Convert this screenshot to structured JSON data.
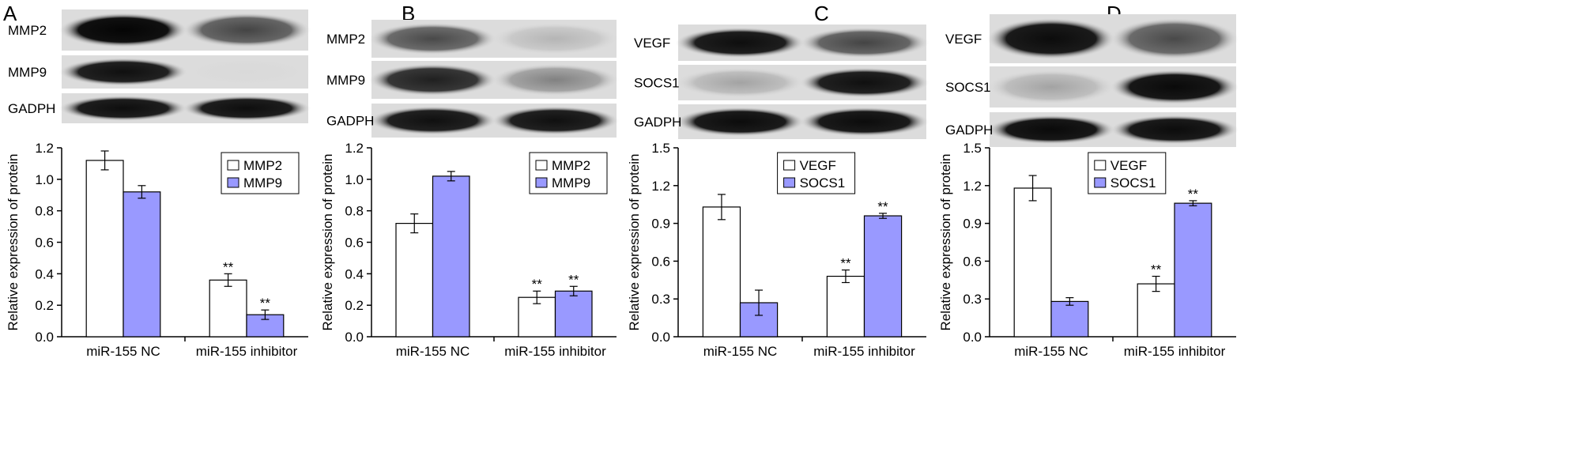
{
  "colors": {
    "series1": "#ffffff",
    "series2": "#9999ff",
    "axis": "#000000"
  },
  "chart_data": [
    {
      "panel": "A",
      "type": "bar",
      "blot_labels": [
        "MMP2",
        "MMP9",
        "GADPH"
      ],
      "blot_intensity": [
        [
          1.0,
          0.72
        ],
        [
          0.95,
          0.06
        ],
        [
          0.96,
          0.96
        ]
      ],
      "categories": [
        "miR-155 NC",
        "miR-155 inhibitor"
      ],
      "series": [
        {
          "name": "MMP2",
          "values": [
            1.12,
            0.36
          ],
          "errors": [
            0.06,
            0.04
          ]
        },
        {
          "name": "MMP9",
          "values": [
            0.92,
            0.14
          ],
          "errors": [
            0.04,
            0.03
          ]
        }
      ],
      "significance": [
        [
          "",
          "**"
        ],
        [
          "",
          "**"
        ]
      ],
      "ylabel": "Relative expression of protein",
      "ylim": [
        0,
        1.2
      ],
      "yticks": [
        "0.0",
        "0.2",
        "0.4",
        "0.6",
        "0.8",
        "1.0",
        "1.2"
      ],
      "legend": "top-right",
      "grid": false
    },
    {
      "panel": "B",
      "type": "bar",
      "blot_labels": [
        "MMP2",
        "MMP9",
        "GADPH"
      ],
      "blot_intensity": [
        [
          0.7,
          0.22
        ],
        [
          0.88,
          0.45
        ],
        [
          0.95,
          0.95
        ]
      ],
      "categories": [
        "miR-155 NC",
        "miR-155 inhibitor"
      ],
      "series": [
        {
          "name": "MMP2",
          "values": [
            0.72,
            0.25
          ],
          "errors": [
            0.06,
            0.04
          ]
        },
        {
          "name": "MMP9",
          "values": [
            1.02,
            0.29
          ],
          "errors": [
            0.03,
            0.03
          ]
        }
      ],
      "significance": [
        [
          "",
          "**"
        ],
        [
          "",
          "**"
        ]
      ],
      "ylabel": "Relative expression of protein",
      "ylim": [
        0,
        1.2
      ],
      "yticks": [
        "0.0",
        "0.2",
        "0.4",
        "0.6",
        "0.8",
        "1.0",
        "1.2"
      ],
      "legend": "top-right",
      "grid": false
    },
    {
      "panel": "C",
      "type": "bar",
      "blot_labels": [
        "VEGF",
        "SOCS1",
        "GADPH"
      ],
      "blot_intensity": [
        [
          0.96,
          0.72
        ],
        [
          0.3,
          0.95
        ],
        [
          0.97,
          0.97
        ]
      ],
      "categories": [
        "miR-155 NC",
        "miR-155 inhibitor"
      ],
      "series": [
        {
          "name": "VEGF",
          "values": [
            1.03,
            0.48
          ],
          "errors": [
            0.1,
            0.05
          ]
        },
        {
          "name": "SOCS1",
          "values": [
            0.27,
            0.96
          ],
          "errors": [
            0.1,
            0.02
          ]
        }
      ],
      "significance": [
        [
          "",
          "**"
        ],
        [
          "",
          "**"
        ]
      ],
      "ylabel": "Relative expression of protein",
      "ylim": [
        0,
        1.5
      ],
      "yticks": [
        "0.0",
        "0.3",
        "0.6",
        "0.9",
        "1.2",
        "1.5"
      ],
      "legend": "top-center",
      "grid": false
    },
    {
      "panel": "D",
      "type": "bar",
      "blot_labels": [
        "VEGF",
        "SOCS1",
        "GADPH"
      ],
      "blot_intensity": [
        [
          0.97,
          0.7
        ],
        [
          0.3,
          0.98
        ],
        [
          0.98,
          0.97
        ]
      ],
      "categories": [
        "miR-155 NC",
        "miR-155 inhibitor"
      ],
      "series": [
        {
          "name": "VEGF",
          "values": [
            1.18,
            0.42
          ],
          "errors": [
            0.1,
            0.06
          ]
        },
        {
          "name": "SOCS1",
          "values": [
            0.28,
            1.06
          ],
          "errors": [
            0.03,
            0.02
          ]
        }
      ],
      "significance": [
        [
          "",
          "**"
        ],
        [
          "",
          "**"
        ]
      ],
      "ylabel": "Relative expression of protein",
      "ylim": [
        0,
        1.5
      ],
      "yticks": [
        "0.0",
        "0.3",
        "0.6",
        "0.9",
        "1.2",
        "1.5"
      ],
      "legend": "top-center",
      "grid": false
    }
  ]
}
